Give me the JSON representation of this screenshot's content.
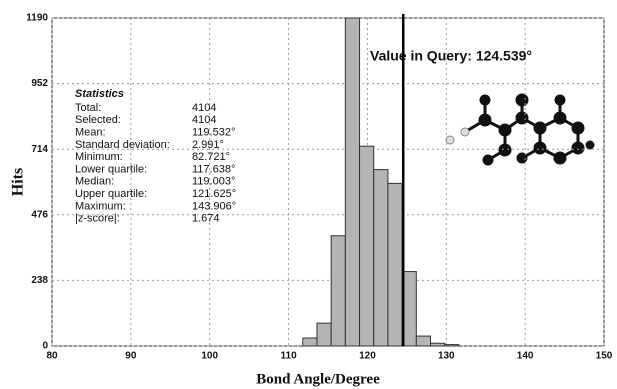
{
  "chart_data": {
    "type": "histogram",
    "bins": [
      111.8,
      113.6,
      115.4,
      117.2,
      119.0,
      120.8,
      122.6,
      124.4,
      126.2,
      128.0,
      129.8,
      131.6
    ],
    "counts": [
      29,
      83,
      400,
      1190,
      725,
      640,
      590,
      270,
      36,
      10,
      5
    ],
    "color": "#b4b4b4",
    "xlim": [
      80,
      150
    ],
    "xticks": [
      80,
      90,
      100,
      110,
      120,
      130,
      140,
      150
    ],
    "ylim": [
      0,
      1190
    ],
    "yticks": [
      0,
      238,
      476,
      714,
      952,
      1190
    ],
    "grid": true,
    "x_label": "Bond Angle/Degree",
    "y_label": "Hits",
    "annotation": {
      "label": "Value in Query: 124.539°",
      "value": 124.539
    },
    "statistics": {
      "title": "Statistics",
      "rows": [
        [
          "Total:",
          "4104"
        ],
        [
          "Selected:",
          "4104"
        ],
        [
          "Mean:",
          "119.532°"
        ],
        [
          "Standard deviation:",
          "2.991°"
        ],
        [
          "Minimum:",
          "82.721°"
        ],
        [
          "Lower quartile:",
          "117.638°"
        ],
        [
          "Median:",
          "119.003°"
        ],
        [
          "Upper quartile:",
          "121.625°"
        ],
        [
          "Maximum:",
          "143.906°"
        ],
        [
          "|z-score|:",
          "1.674"
        ]
      ]
    }
  }
}
